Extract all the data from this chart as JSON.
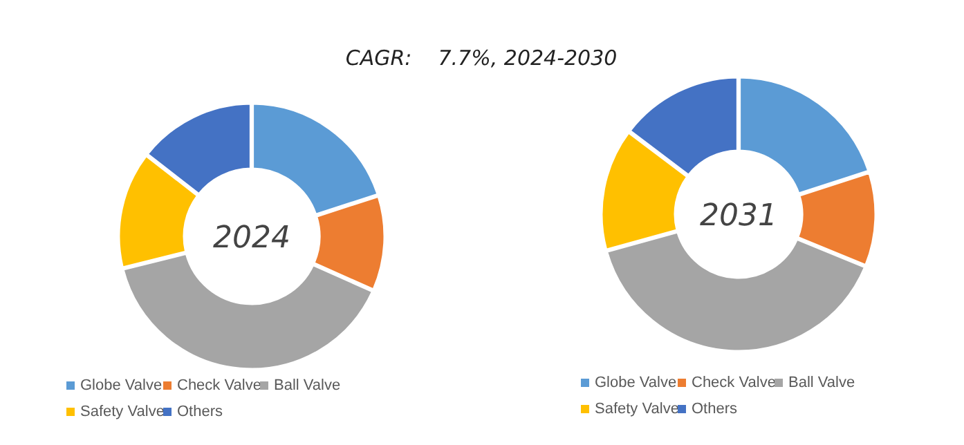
{
  "chart_data": [
    {
      "type": "donut",
      "title": "2024",
      "annotations": [
        "CAGR:    7.7%, 2024-2030"
      ],
      "categories": [
        "Globe Valve",
        "Check Valve",
        "Ball Valve",
        "Safety Valve",
        "Others"
      ],
      "values": [
        20,
        11.7,
        39.4,
        14.4,
        14.5
      ],
      "colors": [
        "#5b9bd5",
        "#ed7d31",
        "#a5a5a5",
        "#ffc000",
        "#4472c4"
      ],
      "legend": "bottom"
    },
    {
      "type": "donut",
      "title": "2031",
      "categories": [
        "Globe Valve",
        "Check Valve",
        "Ball Valve",
        "Safety Valve",
        "Others"
      ],
      "values": [
        20,
        11.2,
        39.5,
        14.6,
        14.7
      ],
      "colors": [
        "#5b9bd5",
        "#ed7d31",
        "#a5a5a5",
        "#ffc000",
        "#4472c4"
      ],
      "legend": "bottom"
    }
  ]
}
